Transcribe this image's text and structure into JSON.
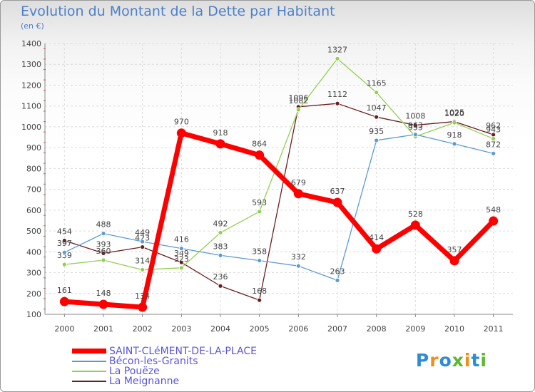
{
  "header": {
    "title": "Evolution du Montant de la Dette par Habitant",
    "subtitle": "(en €)"
  },
  "brand": "Proxiti",
  "chart_data": {
    "type": "line",
    "title": "Evolution du Montant de la Dette par Habitant",
    "subtitle": "(en €)",
    "xlabel": "",
    "ylabel": "",
    "ylim": [
      100,
      1400
    ],
    "yticks": [
      100,
      200,
      300,
      400,
      500,
      600,
      700,
      800,
      900,
      1000,
      1100,
      1200,
      1300,
      1400
    ],
    "grid": true,
    "legend_position": "bottom-left",
    "categories": [
      "2000",
      "2001",
      "2002",
      "2003",
      "2004",
      "2005",
      "2006",
      "2007",
      "2008",
      "2009",
      "2010",
      "2011"
    ],
    "series": [
      {
        "name": "SAINT-CLéMENT-DE-LA-PLACE",
        "color": "#ff0000",
        "values": [
          161,
          148,
          134,
          970,
          918,
          864,
          679,
          637,
          414,
          528,
          357,
          548
        ]
      },
      {
        "name": "Bécon-les-Granits",
        "color": "#5a9bd5",
        "values": [
          397,
          488,
          449,
          416,
          383,
          358,
          332,
          263,
          935,
          963,
          918,
          872
        ]
      },
      {
        "name": "La Pouëze",
        "color": "#92d050",
        "values": [
          339,
          360,
          314,
          323,
          492,
          593,
          1082,
          1327,
          1165,
          953,
          1020,
          943
        ]
      },
      {
        "name": "La Meignanne",
        "color": "#6b1e1e",
        "values": [
          454,
          393,
          423,
          349,
          236,
          168,
          1096,
          1112,
          1047,
          1008,
          1025,
          962
        ]
      }
    ]
  }
}
